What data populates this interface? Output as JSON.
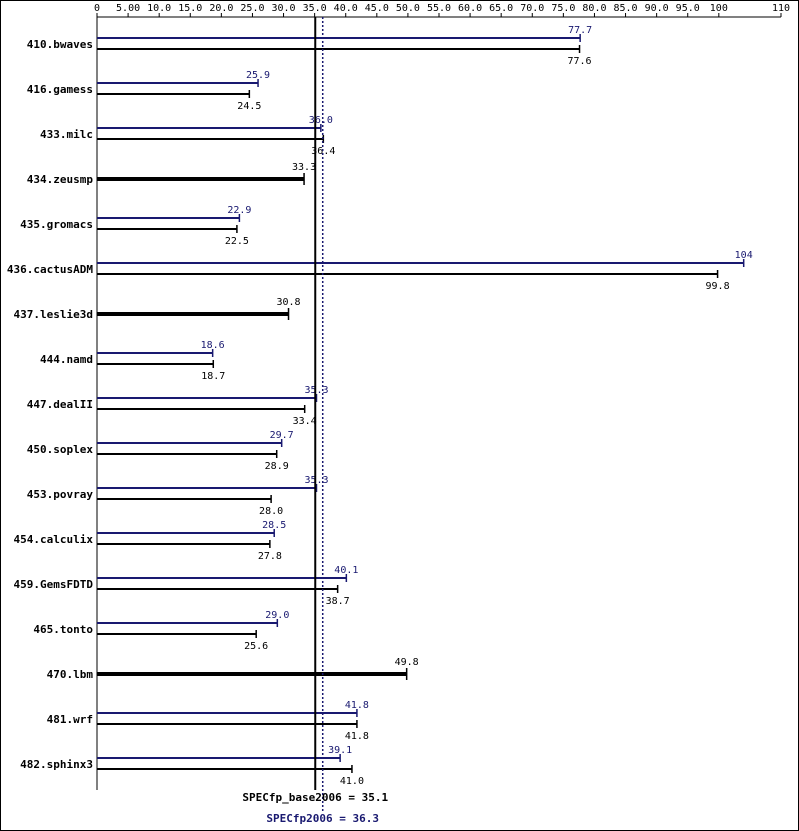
{
  "chart_data": {
    "type": "bar",
    "orientation": "horizontal",
    "xlim": [
      0,
      110
    ],
    "x_ticks": [
      {
        "value": 0,
        "label": "0"
      },
      {
        "value": 5,
        "label": "5.00"
      },
      {
        "value": 10,
        "label": "10.0"
      },
      {
        "value": 15,
        "label": "15.0"
      },
      {
        "value": 20,
        "label": "20.0"
      },
      {
        "value": 25,
        "label": "25.0"
      },
      {
        "value": 30,
        "label": "30.0"
      },
      {
        "value": 35,
        "label": "35.0"
      },
      {
        "value": 40,
        "label": "40.0"
      },
      {
        "value": 45,
        "label": "45.0"
      },
      {
        "value": 50,
        "label": "50.0"
      },
      {
        "value": 55,
        "label": "55.0"
      },
      {
        "value": 60,
        "label": "60.0"
      },
      {
        "value": 65,
        "label": "65.0"
      },
      {
        "value": 70,
        "label": "70.0"
      },
      {
        "value": 75,
        "label": "75.0"
      },
      {
        "value": 80,
        "label": "80.0"
      },
      {
        "value": 85,
        "label": "85.0"
      },
      {
        "value": 90,
        "label": "90.0"
      },
      {
        "value": 95,
        "label": "95.0"
      },
      {
        "value": 100,
        "label": "100"
      },
      {
        "value": 110,
        "label": "110"
      }
    ],
    "colors": {
      "base": "#000000",
      "peak": "#191970"
    },
    "benchmarks": [
      {
        "name": "410.bwaves",
        "peak": 77.7,
        "peak_label": "77.7",
        "base": 77.6,
        "base_label": "77.6"
      },
      {
        "name": "416.gamess",
        "peak": 25.9,
        "peak_label": "25.9",
        "base": 24.5,
        "base_label": "24.5"
      },
      {
        "name": "433.milc",
        "peak": 36.0,
        "peak_label": "36.0",
        "base": 36.4,
        "base_label": "36.4"
      },
      {
        "name": "434.zeusmp",
        "base": 33.3,
        "base_label": "33.3"
      },
      {
        "name": "435.gromacs",
        "peak": 22.9,
        "peak_label": "22.9",
        "base": 22.5,
        "base_label": "22.5"
      },
      {
        "name": "436.cactusADM",
        "peak": 104,
        "peak_label": "104",
        "base": 99.8,
        "base_label": "99.8"
      },
      {
        "name": "437.leslie3d",
        "base": 30.8,
        "base_label": "30.8"
      },
      {
        "name": "444.namd",
        "peak": 18.6,
        "peak_label": "18.6",
        "base": 18.7,
        "base_label": "18.7"
      },
      {
        "name": "447.dealII",
        "peak": 35.3,
        "peak_label": "35.3",
        "base": 33.4,
        "base_label": "33.4"
      },
      {
        "name": "450.soplex",
        "peak": 29.7,
        "peak_label": "29.7",
        "base": 28.9,
        "base_label": "28.9"
      },
      {
        "name": "453.povray",
        "peak": 35.3,
        "peak_label": "35.3",
        "base": 28.0,
        "base_label": "28.0"
      },
      {
        "name": "454.calculix",
        "peak": 28.5,
        "peak_label": "28.5",
        "base": 27.8,
        "base_label": "27.8"
      },
      {
        "name": "459.GemsFDTD",
        "peak": 40.1,
        "peak_label": "40.1",
        "base": 38.7,
        "base_label": "38.7"
      },
      {
        "name": "465.tonto",
        "peak": 29.0,
        "peak_label": "29.0",
        "base": 25.6,
        "base_label": "25.6"
      },
      {
        "name": "470.lbm",
        "base": 49.8,
        "base_label": "49.8"
      },
      {
        "name": "481.wrf",
        "peak": 41.8,
        "peak_label": "41.8",
        "base": 41.8,
        "base_label": "41.8"
      },
      {
        "name": "482.sphinx3",
        "peak": 39.1,
        "peak_label": "39.1",
        "base": 41.0,
        "base_label": "41.0"
      }
    ],
    "overall": {
      "base_value": 35.1,
      "base_label": "SPECfp_base2006 = 35.1",
      "peak_value": 36.3,
      "peak_label": "SPECfp2006 = 36.3"
    }
  }
}
